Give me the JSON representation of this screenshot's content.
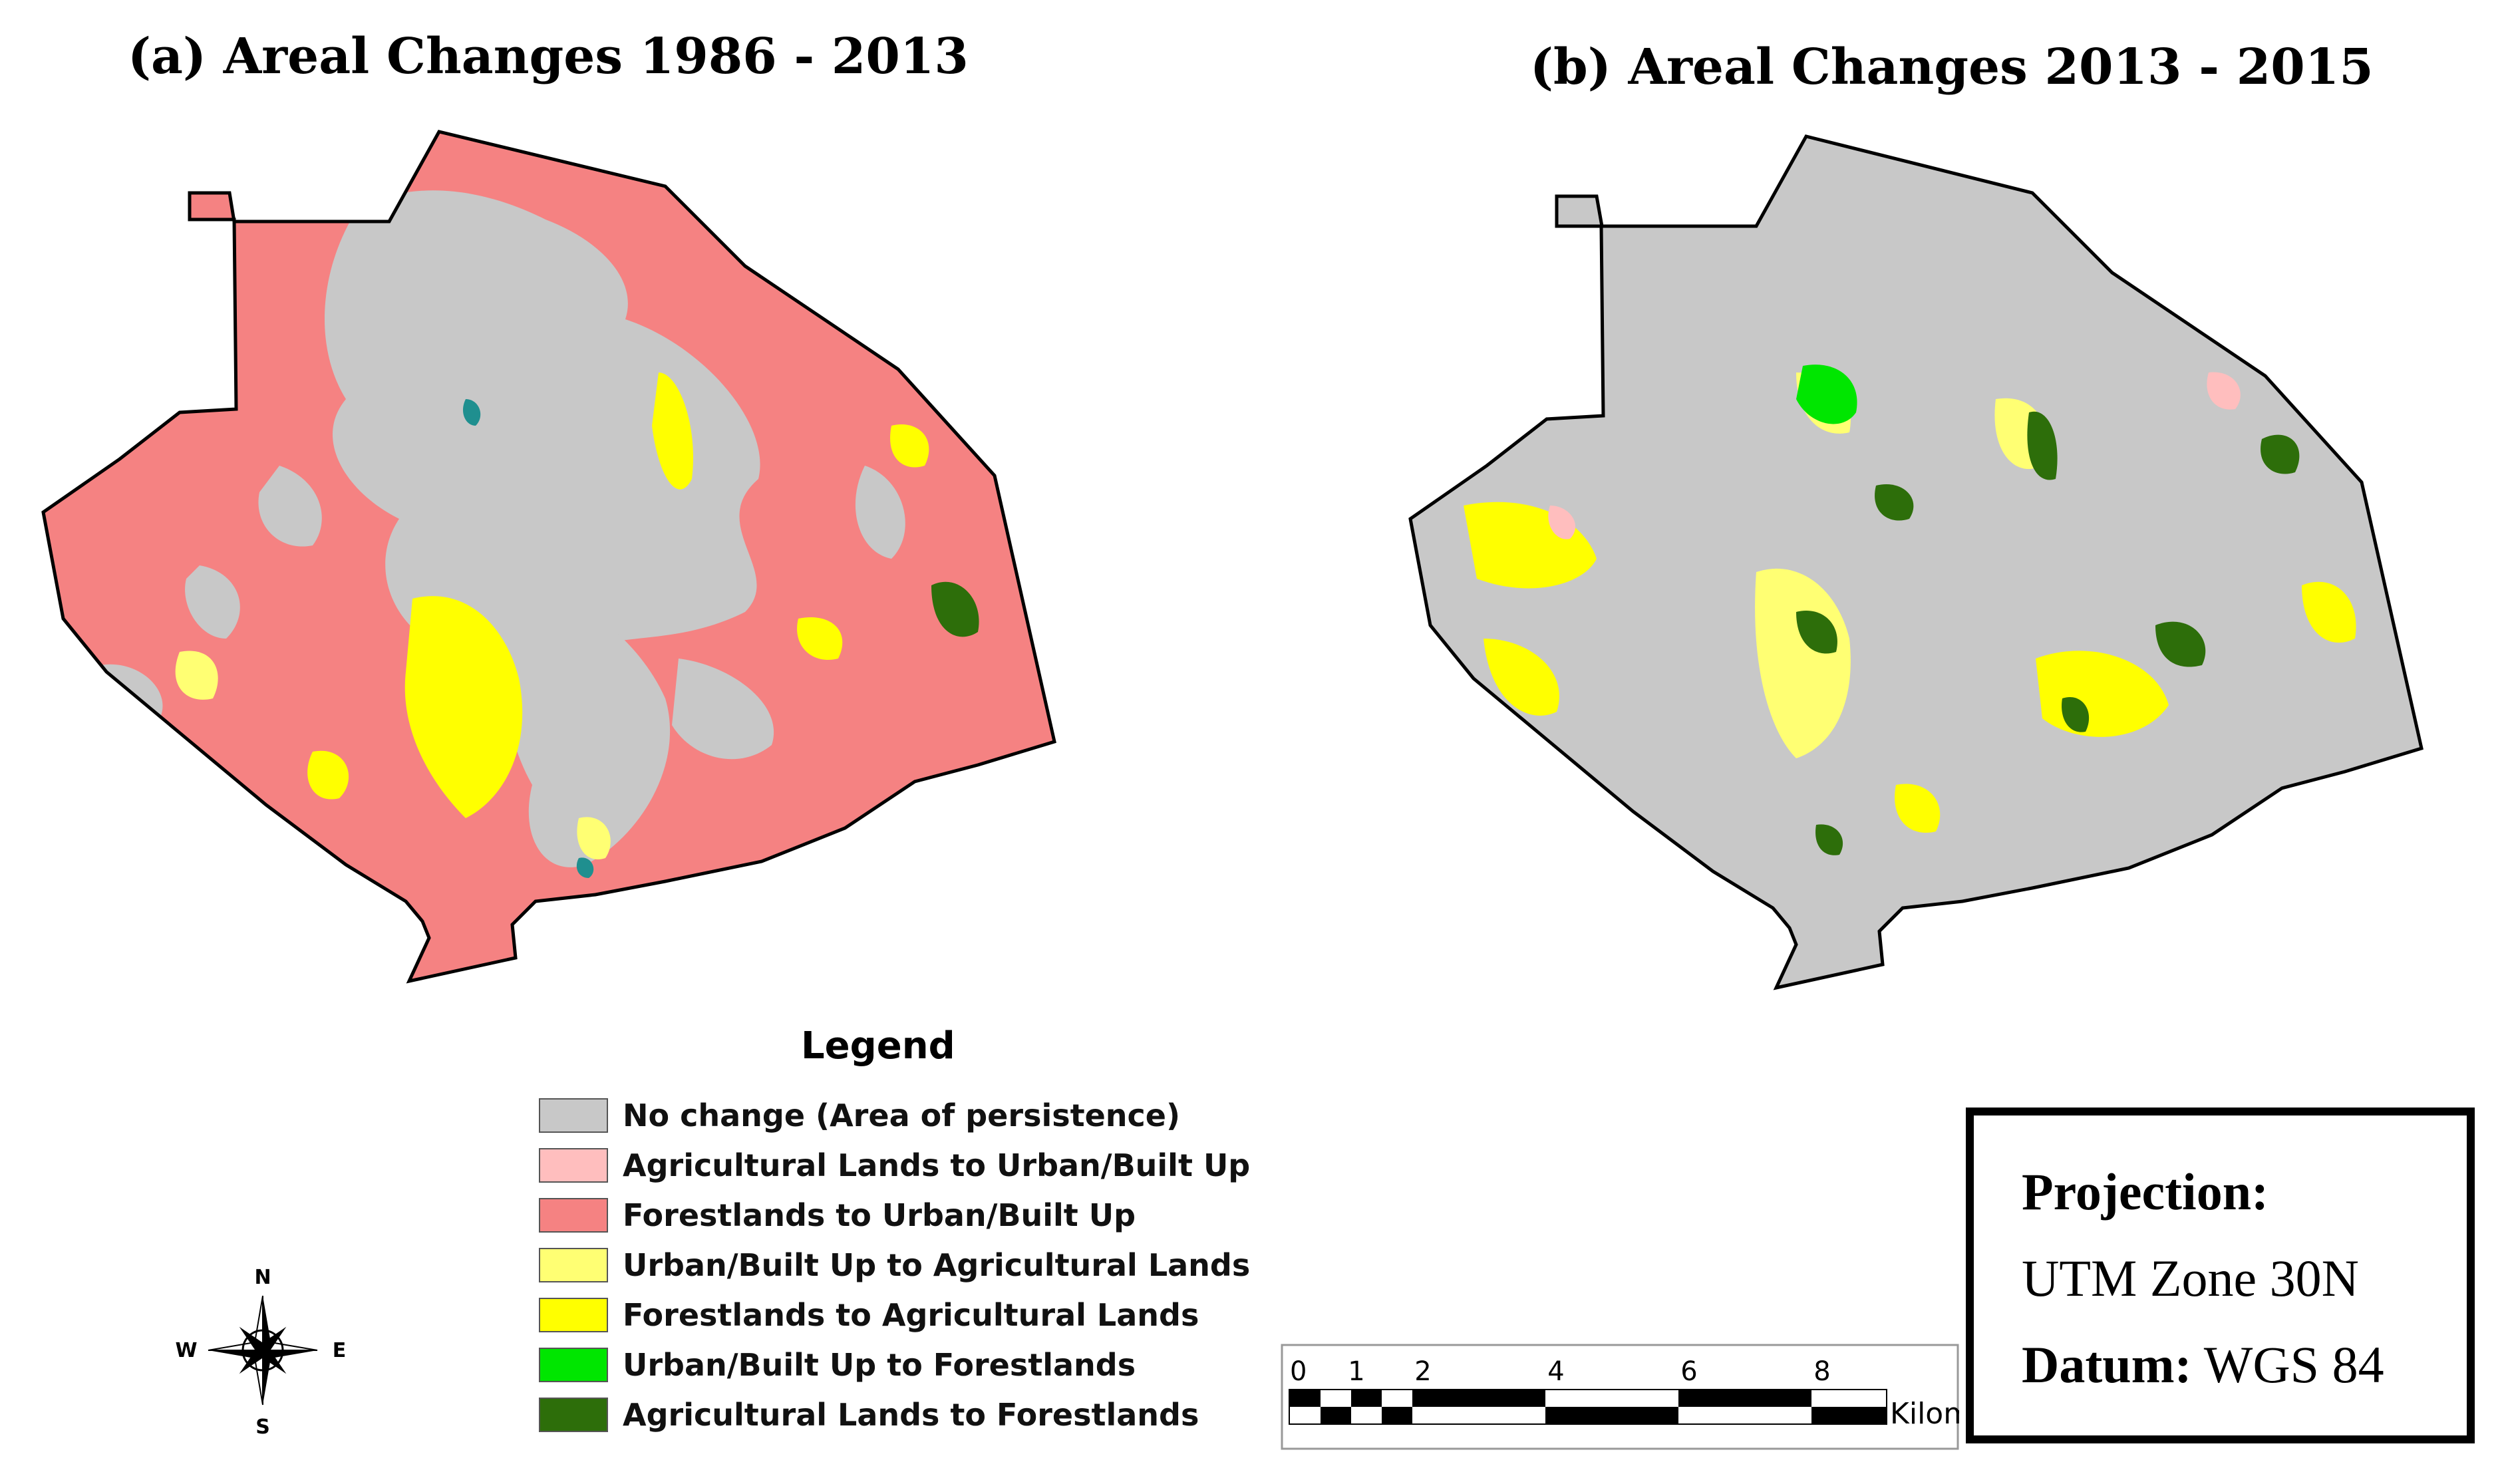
{
  "panels": [
    {
      "title": "(a) Areal Changes 1986 - 2013"
    },
    {
      "title": "(b) Areal Changes 2013 - 2015"
    }
  ],
  "legend": {
    "title": "Legend",
    "items": [
      {
        "label": "No change (Area of persistence)",
        "color": "#c8c8c8"
      },
      {
        "label": "Agricultural Lands to Urban/Built Up",
        "color": "#ffbebe"
      },
      {
        "label": "Forestlands to Urban/Built Up",
        "color": "#f58282"
      },
      {
        "label": "Urban/Built Up to Agricultural Lands",
        "color": "#ffff73"
      },
      {
        "label": "Forestlands to Agricultural Lands",
        "color": "#ffff00"
      },
      {
        "label": "Urban/Built Up to Forestlands",
        "color": "#00e600"
      },
      {
        "label": "Agricultural Lands to Forestlands",
        "color": "#2d6e0a"
      }
    ]
  },
  "north_arrow": {
    "N": "N",
    "S": "S",
    "E": "E",
    "W": "W"
  },
  "scale_bar": {
    "ticks": [
      "0",
      "1",
      "2",
      "4",
      "6",
      "8"
    ],
    "unit": "Kilometers"
  },
  "projection": {
    "projection_label": "Projection:",
    "projection_value": "UTM Zone 30N",
    "datum_label": "Datum:",
    "datum_value": "WGS 84"
  }
}
